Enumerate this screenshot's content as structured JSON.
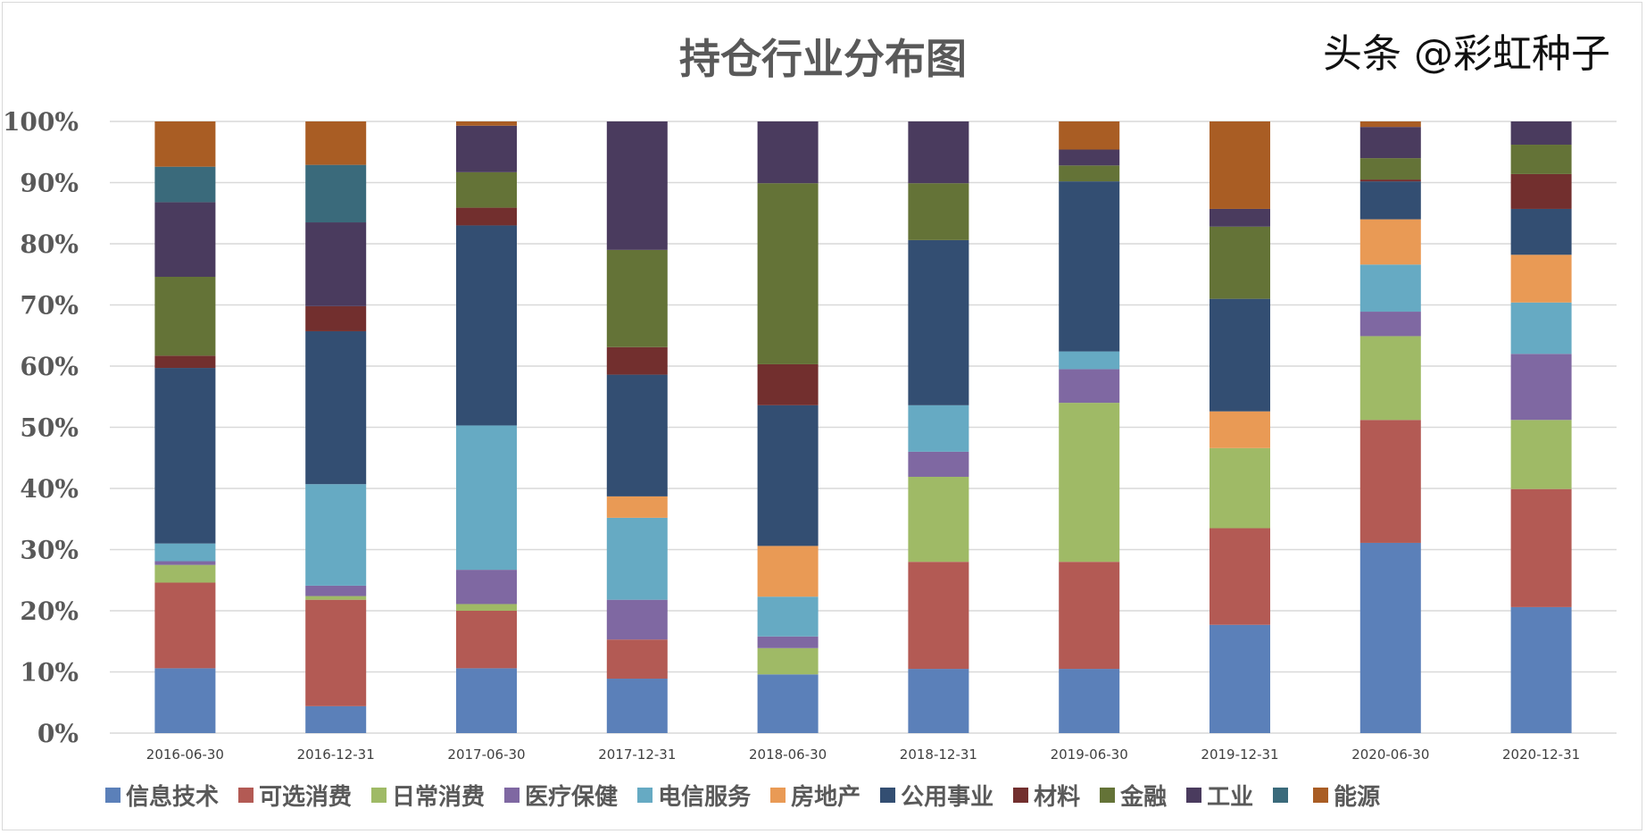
{
  "chart_data": {
    "type": "bar",
    "stacked": "percent",
    "title": "持仓行业分布图",
    "xlabel": "",
    "ylabel": "",
    "ylim": [
      0,
      100
    ],
    "yticks": [
      "0%",
      "10%",
      "20%",
      "30%",
      "40%",
      "50%",
      "60%",
      "70%",
      "80%",
      "90%",
      "100%"
    ],
    "grid": true,
    "legend": "bottom",
    "categories": [
      "2016-06-30",
      "2016-12-31",
      "2017-06-30",
      "2017-12-31",
      "2018-06-30",
      "2018-12-31",
      "2019-06-30",
      "2019-12-31",
      "2020-06-30",
      "2020-12-31"
    ],
    "series": [
      {
        "name": "信息技术",
        "color": "#5b80b9",
        "values": [
          10.6,
          4.4,
          10.6,
          8.9,
          9.6,
          10.5,
          10.5,
          17.7,
          31.1,
          20.6
        ]
      },
      {
        "name": "可选消费",
        "color": "#b35a54",
        "values": [
          14.0,
          17.4,
          9.4,
          6.4,
          0,
          17.5,
          17.5,
          15.8,
          20.1,
          19.3
        ]
      },
      {
        "name": "日常消费",
        "color": "#9fba66",
        "values": [
          2.9,
          0.6,
          1.1,
          0,
          4.3,
          13.9,
          26.0,
          13.1,
          13.7,
          11.3
        ]
      },
      {
        "name": "医疗保健",
        "color": "#7f68a2",
        "values": [
          0.6,
          1.7,
          5.6,
          6.5,
          1.9,
          4.1,
          5.5,
          0,
          4.0,
          10.8
        ]
      },
      {
        "name": "电信服务",
        "color": "#66aac3",
        "values": [
          2.9,
          16.6,
          23.6,
          13.4,
          6.5,
          7.6,
          2.9,
          0,
          7.7,
          8.4
        ]
      },
      {
        "name": "房地产",
        "color": "#e99a55",
        "values": [
          0,
          0,
          0,
          3.5,
          8.3,
          0,
          0,
          6.0,
          7.4,
          7.8
        ]
      },
      {
        "name": "公用事业",
        "color": "#334e72",
        "values": [
          28.7,
          25.0,
          32.7,
          19.9,
          23.0,
          27.0,
          27.8,
          18.4,
          6.2,
          7.5
        ]
      },
      {
        "name": "材料",
        "color": "#722f2e",
        "values": [
          2.0,
          4.1,
          2.9,
          4.5,
          6.7,
          0,
          0,
          0,
          0.3,
          5.7
        ]
      },
      {
        "name": "金融",
        "color": "#647337",
        "values": [
          12.9,
          0,
          5.8,
          15.9,
          29.6,
          9.3,
          2.6,
          11.8,
          3.5,
          4.8
        ]
      },
      {
        "name": "工业",
        "color": "#4a3b5e",
        "values": [
          12.2,
          13.7,
          7.6,
          21.0,
          10.1,
          10.1,
          2.6,
          2.9,
          5.1,
          3.8
        ]
      },
      {
        "name": "",
        "color": "#3a6a7b",
        "values": [
          5.8,
          9.4,
          0,
          0,
          0,
          0,
          0,
          0,
          0,
          0
        ]
      },
      {
        "name": "能源",
        "color": "#a95d24",
        "values": [
          7.4,
          7.1,
          0.7,
          0,
          0,
          0,
          4.6,
          14.3,
          0.9,
          0
        ]
      }
    ]
  },
  "watermark": "头条 @彩虹种子"
}
